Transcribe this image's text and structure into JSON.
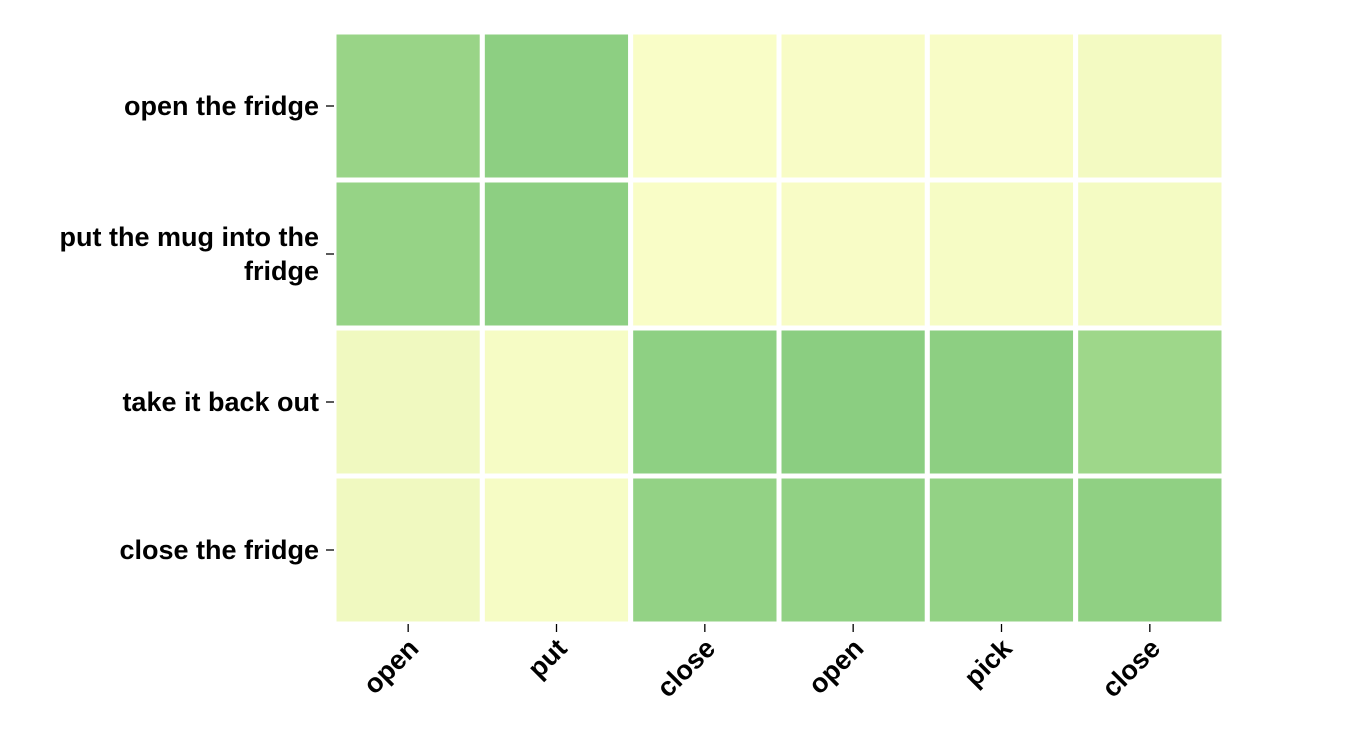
{
  "chart_data": {
    "type": "heatmap",
    "title": "",
    "xlabel": "",
    "ylabel": "",
    "x_categories": [
      "open",
      "put",
      "close",
      "open",
      "pick",
      "close"
    ],
    "y_categories": [
      [
        "open the fridge"
      ],
      [
        "put the mug into the",
        "fridge"
      ],
      [
        "take it back out"
      ],
      [
        "close the fridge"
      ]
    ],
    "values": [
      [
        0.78,
        0.86,
        0.05,
        0.06,
        0.06,
        0.1
      ],
      [
        0.8,
        0.86,
        0.05,
        0.06,
        0.07,
        0.09
      ],
      [
        0.12,
        0.07,
        0.85,
        0.87,
        0.86,
        0.74
      ],
      [
        0.12,
        0.07,
        0.82,
        0.83,
        0.82,
        0.84
      ]
    ],
    "value_range": [
      0,
      1
    ],
    "colormap": [
      "#ffffcc",
      "#c2e699",
      "#78c679"
    ],
    "colorbar": false,
    "grid": false,
    "legend": "none"
  }
}
